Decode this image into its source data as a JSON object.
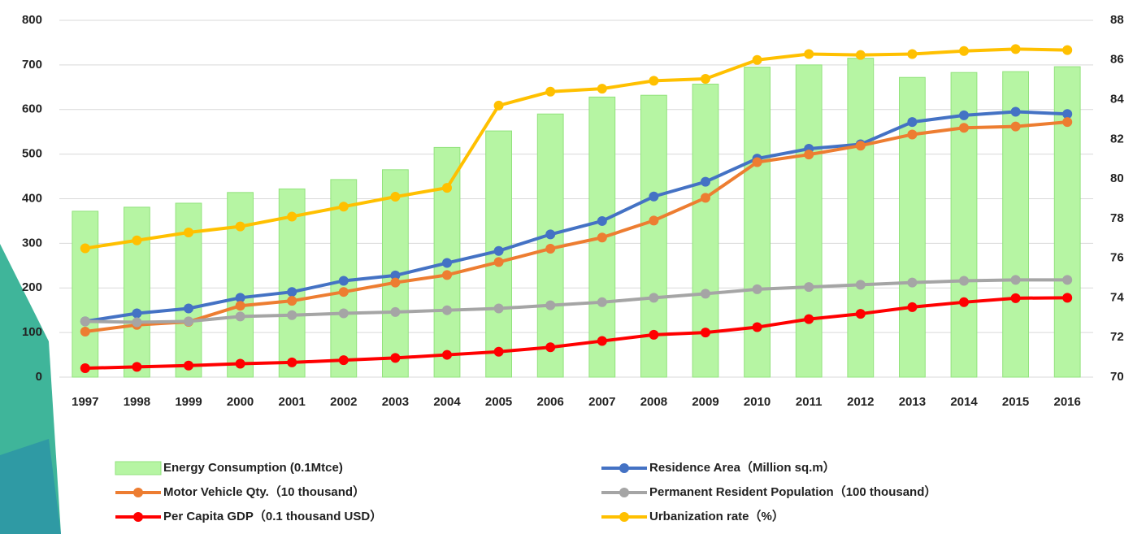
{
  "chart_data": {
    "type": "bar",
    "categories": [
      "1997",
      "1998",
      "1999",
      "2000",
      "2001",
      "2002",
      "2003",
      "2004",
      "2005",
      "2006",
      "2007",
      "2008",
      "2009",
      "2010",
      "2011",
      "2012",
      "2013",
      "2014",
      "2015",
      "2016"
    ],
    "ylim": [
      0,
      800
    ],
    "yticks": [
      0,
      100,
      200,
      300,
      400,
      500,
      600,
      700,
      800
    ],
    "y2lim": [
      70,
      88
    ],
    "y2ticks": [
      70,
      72,
      74,
      76,
      78,
      80,
      82,
      84,
      86,
      88
    ],
    "grid": true,
    "legend": "bottom",
    "series": [
      {
        "name": "Energy Consumption (0.1Mtce)",
        "type": "bar",
        "color": "#b6f5a3",
        "values": [
          372,
          381,
          390,
          414,
          422,
          443,
          465,
          515,
          552,
          590,
          628,
          632,
          657,
          695,
          700,
          715,
          672,
          683,
          685,
          696
        ]
      },
      {
        "name": "Residence Area（Million sq.m）",
        "type": "line",
        "color": "#4472c4",
        "values": [
          125,
          143,
          154,
          178,
          191,
          216,
          228,
          256,
          283,
          320,
          350,
          405,
          438,
          490,
          512,
          522,
          572,
          587,
          595,
          590
        ]
      },
      {
        "name": "Motor Vehicle Qty.（10 thousand）",
        "type": "line",
        "color": "#ed7d31",
        "values": [
          102,
          117,
          124,
          160,
          171,
          191,
          212,
          229,
          258,
          288,
          313,
          351,
          402,
          482,
          499,
          519,
          544,
          559,
          562,
          572
        ]
      },
      {
        "name": "Permanent Resident Population（100 thousand）",
        "type": "line",
        "color": "#a5a5a5",
        "values": [
          125,
          123,
          125,
          136,
          139,
          143,
          146,
          150,
          154,
          161,
          168,
          178,
          187,
          197,
          202,
          207,
          212,
          216,
          218,
          218
        ]
      },
      {
        "name": "Per Capita GDP（0.1 thousand USD）",
        "type": "line",
        "color": "#ff0000",
        "values": [
          20,
          23,
          26,
          30,
          33,
          38,
          43,
          50,
          57,
          67,
          81,
          95,
          100,
          112,
          130,
          142,
          157,
          168,
          177,
          178
        ]
      },
      {
        "name": "Urbanization rate（%）",
        "type": "line",
        "axis": "y2",
        "color": "#ffc000",
        "values": [
          76.5,
          76.9,
          77.3,
          77.6,
          78.1,
          78.6,
          79.1,
          79.55,
          83.7,
          84.4,
          84.55,
          84.95,
          85.05,
          86.0,
          86.3,
          86.25,
          86.3,
          86.45,
          86.55,
          86.5
        ]
      }
    ]
  }
}
